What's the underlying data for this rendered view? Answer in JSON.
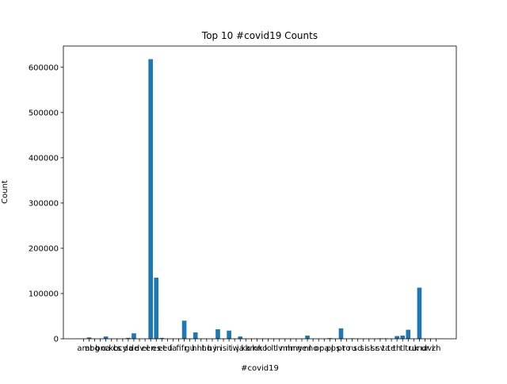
{
  "chart_data": {
    "type": "bar",
    "title": "Top 10 #covid19 Counts",
    "x_label": "#covid19",
    "y_label": "Count",
    "categories": [
      "am",
      "ar",
      "bg",
      "bn",
      "ca",
      "ckb",
      "cs",
      "cy",
      "da",
      "de",
      "dv",
      "el",
      "en",
      "es",
      "et",
      "eu",
      "fa",
      "fi",
      "fr",
      "gu",
      "hi",
      "ht",
      "hu",
      "hy",
      "in",
      "is",
      "it",
      "iw",
      "ja",
      "ka",
      "km",
      "kn",
      "ko",
      "lo",
      "lt",
      "lv",
      "ml",
      "mr",
      "my",
      "ne",
      "nl",
      "no",
      "or",
      "pa",
      "pl",
      "ps",
      "pt",
      "ro",
      "ru",
      "sd",
      "si",
      "sl",
      "sr",
      "sv",
      "ta",
      "te",
      "th",
      "tl",
      "tr",
      "uk",
      "und",
      "ur",
      "vi",
      "zh"
    ],
    "values": [
      100,
      3000,
      100,
      100,
      5000,
      100,
      100,
      100,
      2000,
      12000,
      100,
      100,
      618000,
      135000,
      2000,
      100,
      100,
      100,
      40000,
      100,
      14000,
      100,
      100,
      100,
      21000,
      100,
      18000,
      100,
      5000,
      100,
      100,
      100,
      100,
      100,
      100,
      100,
      100,
      100,
      100,
      100,
      7000,
      100,
      100,
      100,
      1500,
      100,
      23000,
      100,
      1000,
      100,
      100,
      100,
      100,
      1000,
      1000,
      100,
      6000,
      7000,
      20000,
      100,
      113000,
      100,
      100,
      100
    ],
    "color": "#1f77b4",
    "ylim": [
      0,
      647000
    ],
    "yticks": [
      0,
      100000,
      200000,
      300000,
      400000,
      500000,
      600000
    ]
  }
}
